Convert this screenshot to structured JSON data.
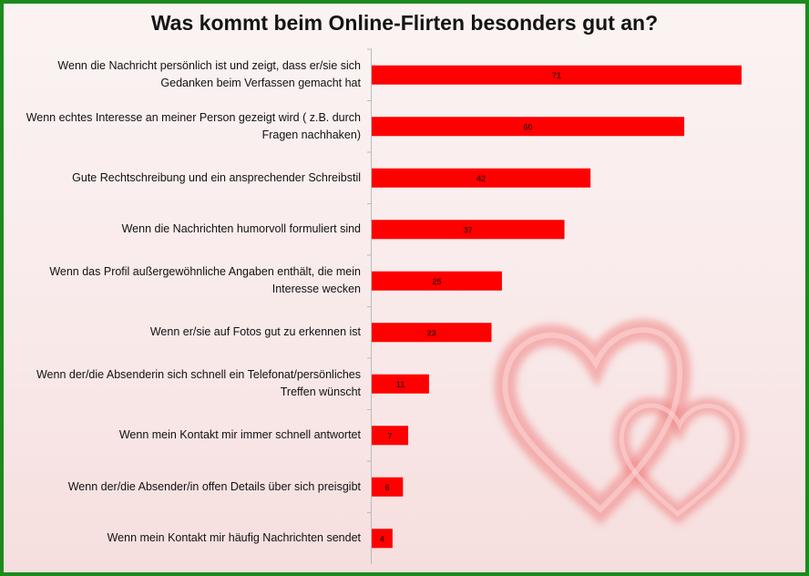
{
  "chart_data": {
    "type": "bar",
    "orientation": "horizontal",
    "title": "Was kommt beim Online-Flirten besonders gut an?",
    "categories": [
      "Wenn die Nachricht persönlich ist und zeigt,  dass er/sie sich Gedanken beim Verfassen gemacht hat",
      "Wenn echtes Interesse an meiner Person gezeigt wird ( z.B. durch Fragen  nachhaken)",
      "Gute Rechtschreibung und ein ansprechender Schreibstil",
      "Wenn die Nachrichten humorvoll  formuliert sind",
      "Wenn das Profil außergewöhnliche Angaben enthält,  die mein Interesse wecken",
      "Wenn er/sie auf Fotos gut zu erkennen ist",
      "Wenn der/die Absenderin sich schnell ein Telefonat/persönliches Treffen wünscht",
      "Wenn mein Kontakt mir immer schnell antwortet",
      "Wenn der/die Absender/in offen Details über sich preisgibt",
      "Wenn mein Kontakt mir häufig Nachrichten sendet"
    ],
    "values": [
      71,
      60,
      42,
      37,
      25,
      23,
      11,
      7,
      6,
      4
    ],
    "xlim": [
      0,
      75
    ],
    "grid": false,
    "legend": "none",
    "data_labels": true,
    "bar_color": "#ff0000",
    "frame_color": "#1d8a1d"
  }
}
